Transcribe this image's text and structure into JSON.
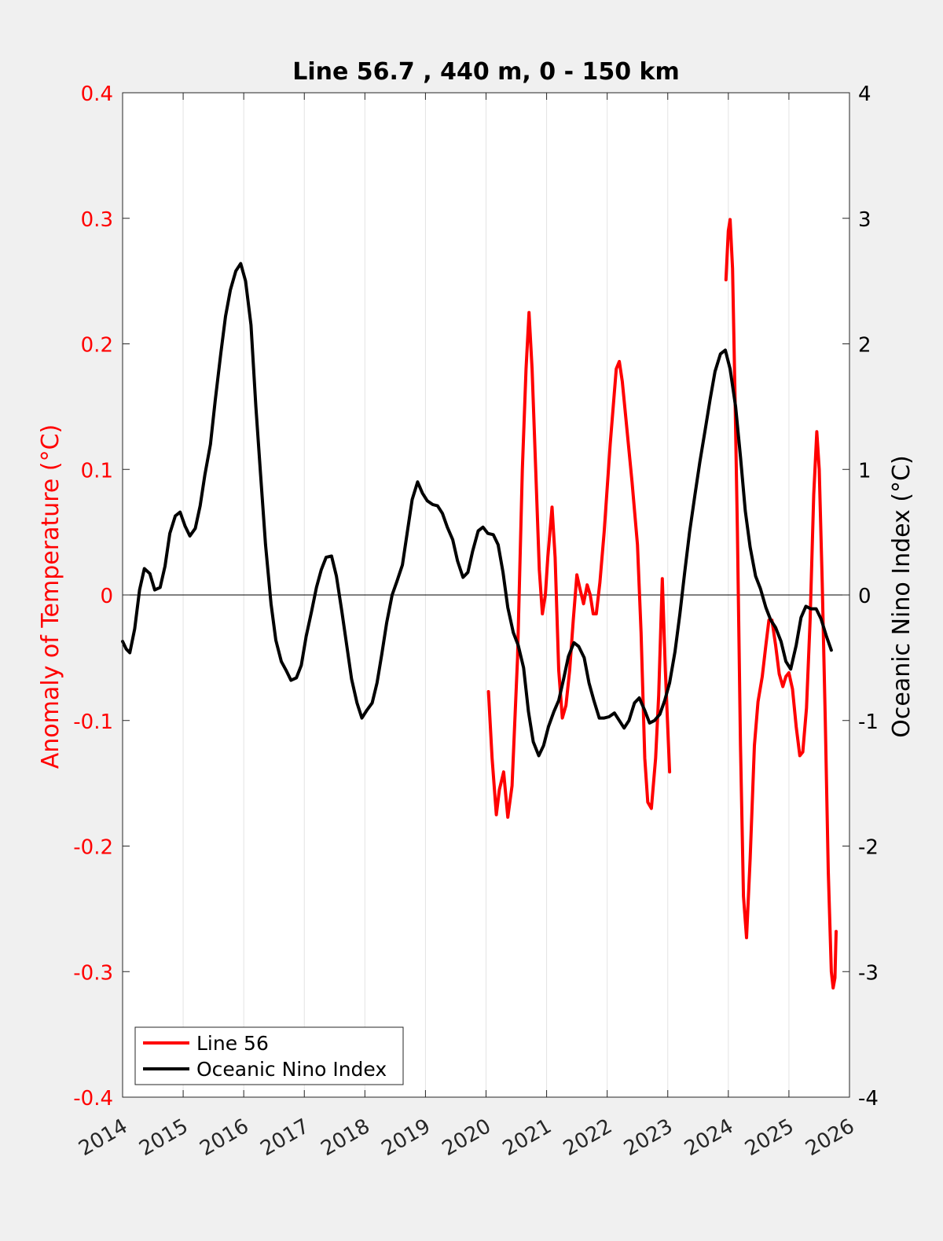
{
  "chart_data": {
    "type": "line",
    "title": "Line 56.7 , 440 m, 0 - 150 km",
    "xlabel": "",
    "ylabel_left": "Anomaly of Temperature (°C)",
    "ylabel_right": "Oceanic Nino Index (°C)",
    "xlim": [
      2014,
      2026
    ],
    "ylim_left": [
      -0.4,
      0.4
    ],
    "ylim_right": [
      -4,
      4
    ],
    "x_ticks": [
      2014,
      2015,
      2016,
      2017,
      2018,
      2019,
      2020,
      2021,
      2022,
      2023,
      2024,
      2025,
      2026
    ],
    "x_tick_labels": [
      "2014",
      "2015",
      "2016",
      "2017",
      "2018",
      "2019",
      "2020",
      "2021",
      "2022",
      "2023",
      "2024",
      "2025",
      "2026"
    ],
    "y_ticks_left": [
      -0.4,
      -0.3,
      -0.2,
      -0.1,
      0,
      0.1,
      0.2,
      0.3,
      0.4
    ],
    "y_tick_labels_left": [
      "-0.4",
      "-0.3",
      "-0.2",
      "-0.1",
      "0",
      "0.1",
      "0.2",
      "0.3",
      "0.4"
    ],
    "y_ticks_right": [
      -4,
      -3,
      -2,
      -1,
      0,
      1,
      2,
      3,
      4
    ],
    "y_tick_labels_right": [
      "-4",
      "-3",
      "-2",
      "-1",
      "0",
      "1",
      "2",
      "3",
      "4"
    ],
    "grid": "vertical",
    "legend_position": "bottom-left",
    "colors": {
      "line56": "#ff0000",
      "oni": "#000000",
      "left_axis": "#ff0000",
      "right_axis": "#000000",
      "background": "#f0f0f0",
      "plot_bg": "#ffffff"
    },
    "series": [
      {
        "name": "Line 56",
        "axis": "left",
        "segments": [
          [
            [
              2020.04,
              -0.077
            ],
            [
              2020.1,
              -0.13
            ],
            [
              2020.17,
              -0.175
            ],
            [
              2020.22,
              -0.155
            ],
            [
              2020.29,
              -0.141
            ],
            [
              2020.36,
              -0.177
            ],
            [
              2020.43,
              -0.152
            ],
            [
              2020.52,
              -0.05
            ],
            [
              2020.6,
              0.1
            ],
            [
              2020.66,
              0.18
            ],
            [
              2020.71,
              0.225
            ],
            [
              2020.76,
              0.18
            ],
            [
              2020.82,
              0.1
            ],
            [
              2020.88,
              0.02
            ],
            [
              2020.93,
              -0.015
            ],
            [
              2020.98,
              0.0
            ],
            [
              2021.02,
              0.03
            ],
            [
              2021.09,
              0.07
            ],
            [
              2021.14,
              0.03
            ],
            [
              2021.2,
              -0.06
            ],
            [
              2021.26,
              -0.098
            ],
            [
              2021.32,
              -0.088
            ],
            [
              2021.38,
              -0.06
            ],
            [
              2021.44,
              -0.02
            ],
            [
              2021.5,
              0.016
            ],
            [
              2021.55,
              0.005
            ],
            [
              2021.61,
              -0.007
            ],
            [
              2021.67,
              0.008
            ],
            [
              2021.72,
              0.0
            ],
            [
              2021.77,
              -0.015
            ],
            [
              2021.82,
              -0.015
            ],
            [
              2021.88,
              0.01
            ],
            [
              2021.95,
              0.05
            ],
            [
              2022.05,
              0.12
            ],
            [
              2022.15,
              0.18
            ],
            [
              2022.2,
              0.186
            ],
            [
              2022.25,
              0.17
            ],
            [
              2022.33,
              0.13
            ],
            [
              2022.41,
              0.09
            ],
            [
              2022.5,
              0.04
            ],
            [
              2022.56,
              -0.03
            ],
            [
              2022.62,
              -0.13
            ],
            [
              2022.67,
              -0.165
            ],
            [
              2022.73,
              -0.17
            ],
            [
              2022.8,
              -0.13
            ],
            [
              2022.85,
              -0.08
            ],
            [
              2022.91,
              0.013
            ],
            [
              2022.96,
              -0.06
            ],
            [
              2023.03,
              -0.141
            ]
          ],
          [
            [
              2023.96,
              0.251
            ],
            [
              2024.0,
              0.29
            ],
            [
              2024.03,
              0.299
            ],
            [
              2024.07,
              0.26
            ],
            [
              2024.11,
              0.16
            ],
            [
              2024.15,
              0.05
            ],
            [
              2024.2,
              -0.12
            ],
            [
              2024.25,
              -0.24
            ],
            [
              2024.3,
              -0.273
            ],
            [
              2024.36,
              -0.21
            ],
            [
              2024.43,
              -0.12
            ],
            [
              2024.49,
              -0.085
            ],
            [
              2024.56,
              -0.065
            ],
            [
              2024.62,
              -0.04
            ],
            [
              2024.67,
              -0.02
            ],
            [
              2024.72,
              -0.02
            ],
            [
              2024.78,
              -0.04
            ],
            [
              2024.84,
              -0.063
            ],
            [
              2024.9,
              -0.073
            ],
            [
              2024.95,
              -0.065
            ],
            [
              2025.0,
              -0.062
            ],
            [
              2025.06,
              -0.075
            ],
            [
              2025.12,
              -0.105
            ],
            [
              2025.18,
              -0.128
            ],
            [
              2025.23,
              -0.125
            ],
            [
              2025.29,
              -0.09
            ],
            [
              2025.35,
              -0.02
            ],
            [
              2025.41,
              0.08
            ],
            [
              2025.46,
              0.13
            ],
            [
              2025.5,
              0.1
            ],
            [
              2025.55,
              0.01
            ],
            [
              2025.6,
              -0.1
            ],
            [
              2025.65,
              -0.22
            ],
            [
              2025.7,
              -0.3
            ],
            [
              2025.73,
              -0.313
            ],
            [
              2025.76,
              -0.305
            ],
            [
              2025.78,
              -0.268
            ]
          ]
        ]
      },
      {
        "name": "Oceanic Nino Index",
        "axis": "right",
        "segments": [
          [
            [
              2014.0,
              -0.37
            ],
            [
              2014.06,
              -0.43
            ],
            [
              2014.12,
              -0.46
            ],
            [
              2014.2,
              -0.27
            ],
            [
              2014.28,
              0.04
            ],
            [
              2014.36,
              0.21
            ],
            [
              2014.45,
              0.17
            ],
            [
              2014.53,
              0.04
            ],
            [
              2014.62,
              0.06
            ],
            [
              2014.7,
              0.23
            ],
            [
              2014.78,
              0.49
            ],
            [
              2014.87,
              0.63
            ],
            [
              2014.95,
              0.66
            ],
            [
              2015.03,
              0.55
            ],
            [
              2015.11,
              0.47
            ],
            [
              2015.2,
              0.53
            ],
            [
              2015.28,
              0.71
            ],
            [
              2015.36,
              0.96
            ],
            [
              2015.45,
              1.2
            ],
            [
              2015.53,
              1.55
            ],
            [
              2015.62,
              1.92
            ],
            [
              2015.7,
              2.22
            ],
            [
              2015.78,
              2.43
            ],
            [
              2015.87,
              2.58
            ],
            [
              2015.95,
              2.64
            ],
            [
              2016.03,
              2.5
            ],
            [
              2016.12,
              2.15
            ],
            [
              2016.2,
              1.5
            ],
            [
              2016.28,
              0.95
            ],
            [
              2016.36,
              0.4
            ],
            [
              2016.45,
              -0.07
            ],
            [
              2016.53,
              -0.36
            ],
            [
              2016.62,
              -0.53
            ],
            [
              2016.7,
              -0.6
            ],
            [
              2016.78,
              -0.68
            ],
            [
              2016.87,
              -0.66
            ],
            [
              2016.95,
              -0.56
            ],
            [
              2017.03,
              -0.33
            ],
            [
              2017.12,
              -0.13
            ],
            [
              2017.2,
              0.06
            ],
            [
              2017.28,
              0.2
            ],
            [
              2017.36,
              0.3
            ],
            [
              2017.45,
              0.31
            ],
            [
              2017.53,
              0.15
            ],
            [
              2017.62,
              -0.13
            ],
            [
              2017.7,
              -0.4
            ],
            [
              2017.78,
              -0.67
            ],
            [
              2017.87,
              -0.86
            ],
            [
              2017.95,
              -0.98
            ],
            [
              2018.03,
              -0.92
            ],
            [
              2018.12,
              -0.86
            ],
            [
              2018.2,
              -0.7
            ],
            [
              2018.28,
              -0.47
            ],
            [
              2018.36,
              -0.22
            ],
            [
              2018.45,
              0.0
            ],
            [
              2018.53,
              0.11
            ],
            [
              2018.62,
              0.24
            ],
            [
              2018.7,
              0.5
            ],
            [
              2018.78,
              0.76
            ],
            [
              2018.87,
              0.9
            ],
            [
              2018.95,
              0.81
            ],
            [
              2019.03,
              0.75
            ],
            [
              2019.12,
              0.72
            ],
            [
              2019.2,
              0.71
            ],
            [
              2019.28,
              0.65
            ],
            [
              2019.36,
              0.54
            ],
            [
              2019.45,
              0.44
            ],
            [
              2019.53,
              0.27
            ],
            [
              2019.62,
              0.14
            ],
            [
              2019.7,
              0.18
            ],
            [
              2019.78,
              0.35
            ],
            [
              2019.87,
              0.51
            ],
            [
              2019.95,
              0.54
            ],
            [
              2020.03,
              0.49
            ],
            [
              2020.12,
              0.48
            ],
            [
              2020.2,
              0.4
            ],
            [
              2020.28,
              0.18
            ],
            [
              2020.36,
              -0.1
            ],
            [
              2020.45,
              -0.3
            ],
            [
              2020.53,
              -0.4
            ],
            [
              2020.62,
              -0.58
            ],
            [
              2020.7,
              -0.93
            ],
            [
              2020.78,
              -1.17
            ],
            [
              2020.87,
              -1.28
            ],
            [
              2020.95,
              -1.2
            ],
            [
              2021.03,
              -1.05
            ],
            [
              2021.12,
              -0.93
            ],
            [
              2021.2,
              -0.84
            ],
            [
              2021.28,
              -0.67
            ],
            [
              2021.36,
              -0.49
            ],
            [
              2021.45,
              -0.38
            ],
            [
              2021.53,
              -0.41
            ],
            [
              2021.62,
              -0.5
            ],
            [
              2021.7,
              -0.7
            ],
            [
              2021.78,
              -0.84
            ],
            [
              2021.87,
              -0.98
            ],
            [
              2021.95,
              -0.98
            ],
            [
              2022.03,
              -0.97
            ],
            [
              2022.12,
              -0.94
            ],
            [
              2022.2,
              -1.0
            ],
            [
              2022.28,
              -1.06
            ],
            [
              2022.36,
              -1.0
            ],
            [
              2022.45,
              -0.86
            ],
            [
              2022.53,
              -0.82
            ],
            [
              2022.62,
              -0.92
            ],
            [
              2022.7,
              -1.02
            ],
            [
              2022.78,
              -1.0
            ],
            [
              2022.87,
              -0.95
            ],
            [
              2022.95,
              -0.84
            ],
            [
              2023.03,
              -0.7
            ],
            [
              2023.12,
              -0.45
            ],
            [
              2023.2,
              -0.15
            ],
            [
              2023.28,
              0.18
            ],
            [
              2023.36,
              0.5
            ],
            [
              2023.45,
              0.8
            ],
            [
              2023.53,
              1.06
            ],
            [
              2023.62,
              1.32
            ],
            [
              2023.7,
              1.56
            ],
            [
              2023.78,
              1.78
            ],
            [
              2023.87,
              1.92
            ],
            [
              2023.95,
              1.95
            ],
            [
              2024.03,
              1.8
            ],
            [
              2024.12,
              1.5
            ],
            [
              2024.2,
              1.1
            ],
            [
              2024.28,
              0.67
            ],
            [
              2024.36,
              0.38
            ],
            [
              2024.45,
              0.15
            ],
            [
              2024.53,
              0.05
            ],
            [
              2024.62,
              -0.1
            ],
            [
              2024.7,
              -0.2
            ],
            [
              2024.78,
              -0.26
            ],
            [
              2024.87,
              -0.37
            ],
            [
              2024.95,
              -0.53
            ],
            [
              2025.03,
              -0.59
            ],
            [
              2025.12,
              -0.4
            ],
            [
              2025.2,
              -0.18
            ],
            [
              2025.28,
              -0.09
            ],
            [
              2025.36,
              -0.11
            ],
            [
              2025.45,
              -0.11
            ],
            [
              2025.53,
              -0.19
            ],
            [
              2025.62,
              -0.33
            ],
            [
              2025.7,
              -0.44
            ]
          ]
        ]
      }
    ]
  }
}
